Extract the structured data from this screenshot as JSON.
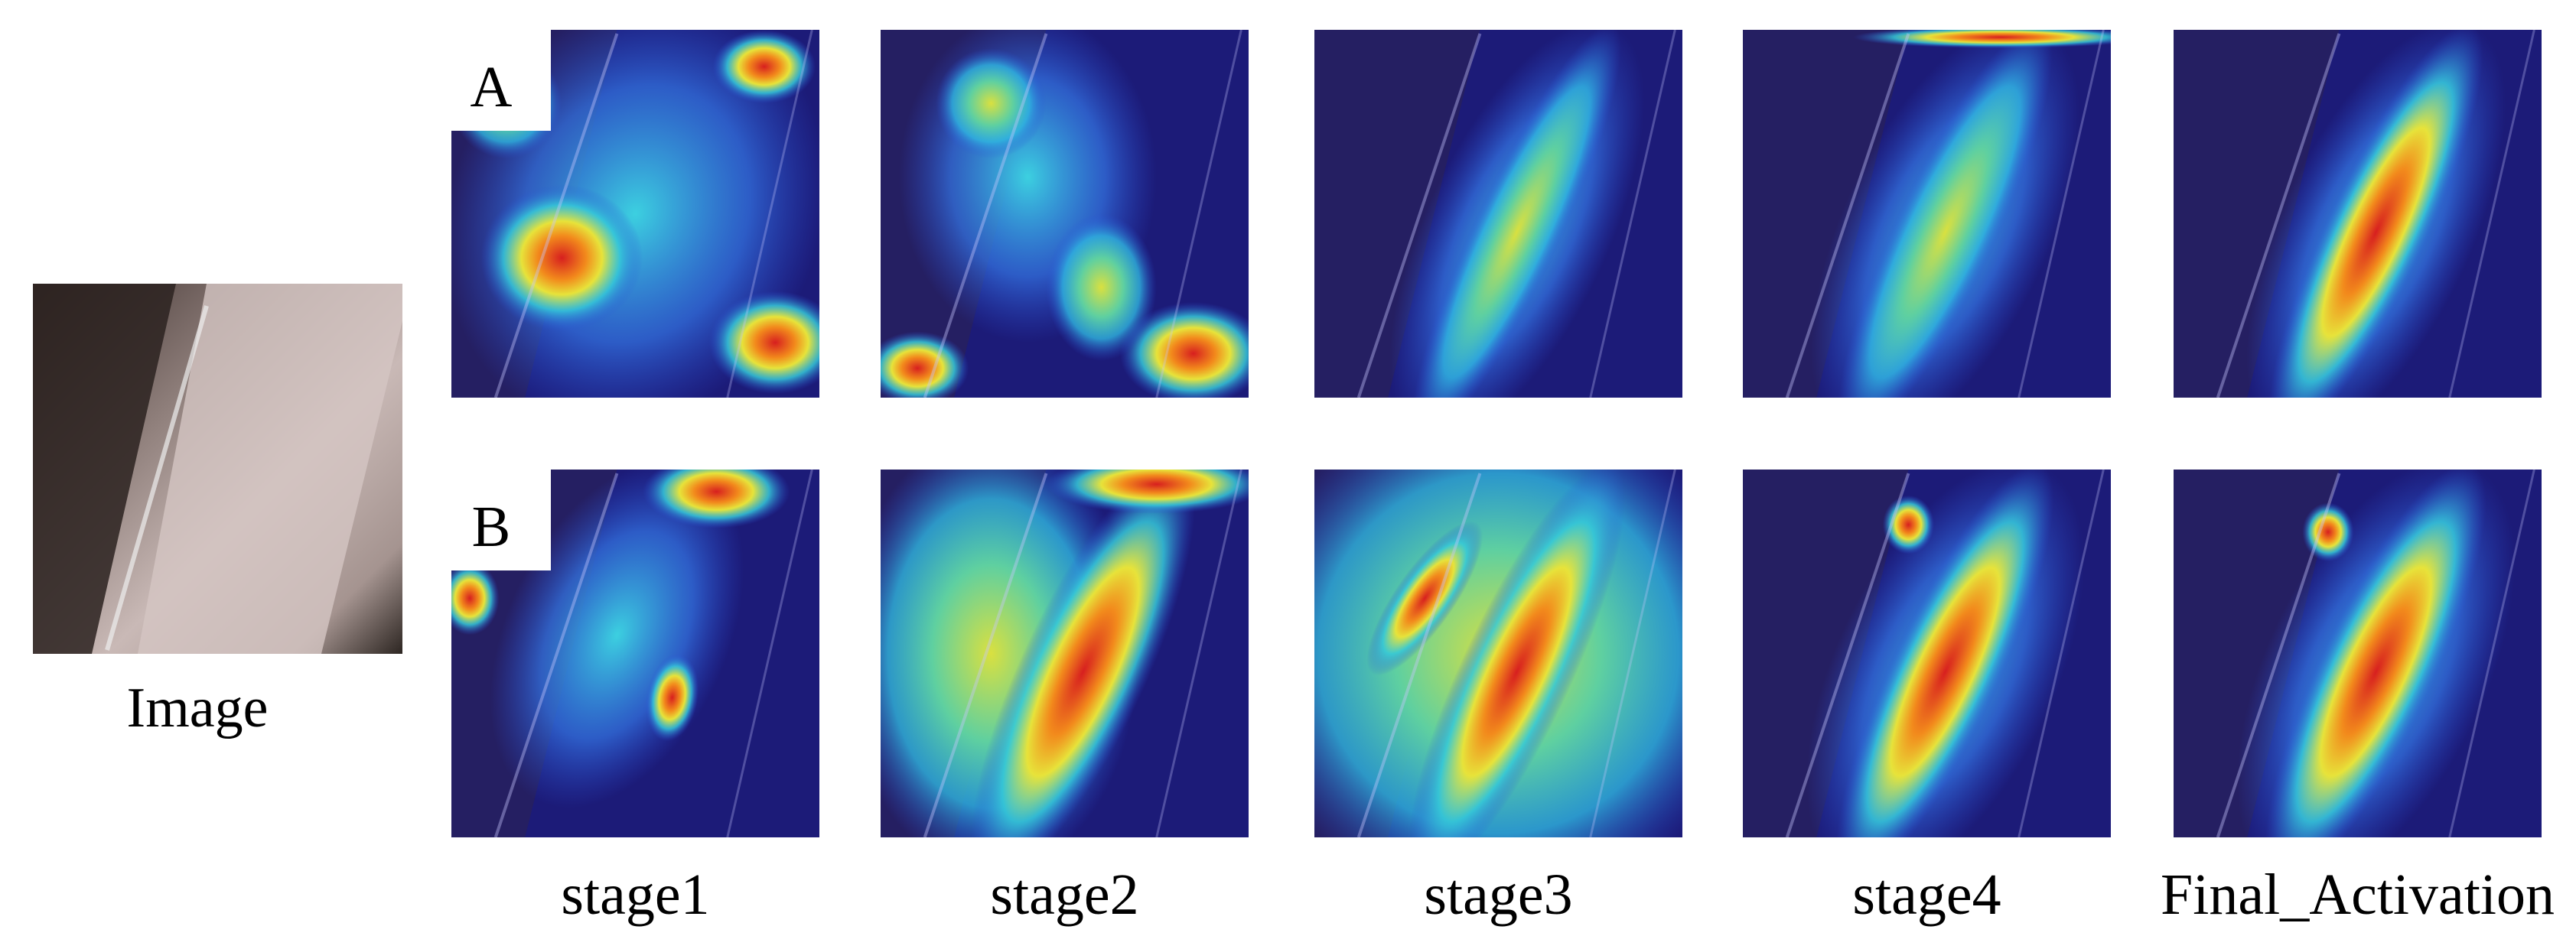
{
  "image": {
    "label": "Image"
  },
  "rows": [
    {
      "label": "A"
    },
    {
      "label": "B"
    }
  ],
  "columns": [
    "stage1",
    "stage2",
    "stage3",
    "stage4",
    "Final_Activation"
  ]
}
